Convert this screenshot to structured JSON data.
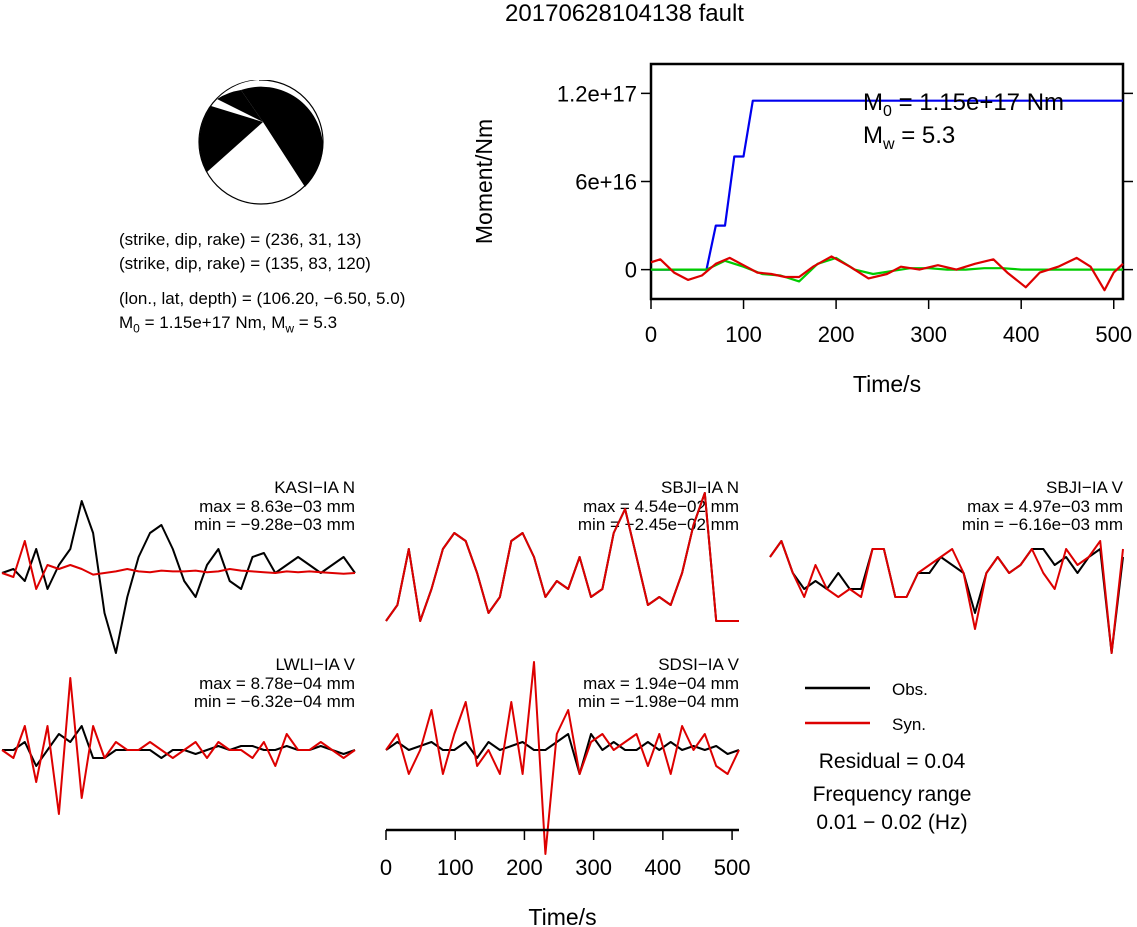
{
  "title": "20170628104138 fault",
  "beachball": {
    "nodal_plane_1": "(strike, dip, rake) = (236, 31, 13)",
    "nodal_plane_2": "(strike, dip, rake) = (135, 83, 120)",
    "location": "(lon., lat, depth) = (106.20, −6.50, 5.0)",
    "moment_line_prefix": "M",
    "moment_line_suffix": " = 1.15e+17 Nm, M",
    "moment_line_tail": " = 5.3",
    "subscript_0": "0",
    "subscript_w": "w"
  },
  "chart_data": [
    {
      "type": "line",
      "id": "moment-rate",
      "ylabel": "Moment/Nm",
      "xlabel": "Time/s",
      "xlim": [
        0,
        510
      ],
      "ylim": [
        -2e+16,
        1.4e+17
      ],
      "x_ticks": [
        0,
        100,
        200,
        300,
        400,
        500
      ],
      "y_ticks": [
        0,
        6e+16,
        1.2e+17
      ],
      "y_tick_labels": [
        "0",
        "6e+16",
        "1.2e+17"
      ],
      "annotation_m0": {
        "prefix": "M",
        "sub": "0",
        "rest": " = 1.15e+17 Nm"
      },
      "annotation_mw": {
        "prefix": "M",
        "sub": "w",
        "rest": " = 5.3"
      },
      "series": [
        {
          "color": "#0000ee",
          "x": [
            0,
            60,
            70,
            80,
            80,
            90,
            100,
            110,
            120,
            510
          ],
          "y": [
            0,
            0,
            3e+16,
            3e+16,
            3e+16,
            7.7e+16,
            7.7e+16,
            1.15e+17,
            1.15e+17,
            1.15e+17
          ]
        },
        {
          "color": "#00cc00",
          "x": [
            0,
            20,
            40,
            60,
            80,
            100,
            120,
            140,
            160,
            180,
            200,
            220,
            240,
            260,
            280,
            300,
            320,
            340,
            360,
            380,
            400,
            420,
            440,
            460,
            480,
            500,
            510
          ],
          "y": [
            0,
            0,
            0,
            0,
            6000000000000000.0,
            2000000000000000.0,
            -3000000000000000.0,
            -4000000000000000.0,
            -8000000000000000.0,
            4000000000000000.0,
            8000000000000000.0,
            0,
            -3000000000000000.0,
            -1000000000000000.0,
            1000000000000000.0,
            1000000000000000.0,
            0,
            0,
            1000000000000000.0,
            1000000000000000.0,
            0,
            0,
            0,
            0,
            0,
            0,
            0
          ]
        },
        {
          "color": "#dd0000",
          "x": [
            0,
            10,
            25,
            40,
            55,
            70,
            85,
            100,
            115,
            130,
            145,
            160,
            175,
            195,
            215,
            235,
            255,
            270,
            290,
            310,
            330,
            350,
            370,
            385,
            405,
            420,
            440,
            460,
            475,
            490,
            500,
            510
          ],
          "y": [
            5000000000000000.0,
            7000000000000000.0,
            -2000000000000000.0,
            -7000000000000000.0,
            -4000000000000000.0,
            4000000000000000.0,
            8000000000000000.0,
            3000000000000000.0,
            -2000000000000000.0,
            -3000000000000000.0,
            -5000000000000000.0,
            -5000000000000000.0,
            2000000000000000.0,
            9000000000000000.0,
            2000000000000000.0,
            -6000000000000000.0,
            -3000000000000000.0,
            2000000000000000.0,
            0,
            3000000000000000.0,
            0,
            4000000000000000.0,
            7000000000000000.0,
            -2000000000000000.0,
            -1.2e+16,
            -2000000000000000.0,
            2000000000000000.0,
            8000000000000000.0,
            2000000000000000.0,
            -1.4e+16,
            -2000000000000000.0,
            4000000000000000.0
          ]
        }
      ]
    },
    {
      "type": "line",
      "id": "waveform-grid",
      "xlabel": "Time/s",
      "xlim": [
        0,
        510
      ],
      "x_ticks": [
        0,
        100,
        200,
        300,
        400,
        500
      ],
      "legend": {
        "position": "bottom-right",
        "obs_label": "Obs.",
        "syn_label": "Syn.",
        "obs_color": "#000000",
        "syn_color": "#dd0000"
      },
      "residual": "Residual = 0.04",
      "frequency_title": "Frequency range",
      "frequency_value": "0.01 − 0.02 (Hz)",
      "stations": [
        {
          "station": "KASI−IA N",
          "max": "max = 8.63e−03 mm",
          "min": "min = −9.28e−03 mm",
          "obs": [
            0,
            0.05,
            -0.1,
            0.3,
            -0.2,
            0.1,
            0.3,
            0.9,
            0.5,
            -0.5,
            -1.0,
            -0.3,
            0.2,
            0.5,
            0.6,
            0.3,
            -0.1,
            -0.3,
            0.1,
            0.3,
            -0.1,
            -0.2,
            0.2,
            0.25,
            0.0,
            0.1,
            0.2,
            0.1,
            0.0,
            0.1,
            0.2,
            0.0
          ],
          "syn": [
            0,
            -0.05,
            0.4,
            -0.2,
            0.1,
            0.05,
            0.1,
            0.05,
            -0.02,
            0.0,
            0.02,
            0.05,
            0.02,
            0.01,
            0.03,
            0.02,
            0.02,
            0.03,
            0.01,
            0.02,
            0.05,
            0.03,
            0.02,
            0.01,
            0.0,
            0.02,
            0.01,
            0.02,
            0.01,
            0.0,
            -0.01,
            0.0
          ]
        },
        {
          "station": "SBJI−IA N",
          "max": "max = 4.54e−02 mm",
          "min": "min = −2.45e−02 mm",
          "obs": [
            -0.6,
            -0.4,
            0.3,
            -0.6,
            -0.2,
            0.3,
            0.5,
            0.4,
            0.0,
            -0.5,
            -0.3,
            0.4,
            0.5,
            0.2,
            -0.3,
            -0.1,
            -0.2,
            0.2,
            -0.3,
            -0.2,
            0.5,
            0.8,
            0.2,
            -0.4,
            -0.3,
            -0.4,
            0.0,
            0.6,
            1.0,
            -0.6,
            -0.6,
            -0.6
          ],
          "syn": [
            -0.6,
            -0.4,
            0.3,
            -0.6,
            -0.2,
            0.3,
            0.5,
            0.4,
            0.0,
            -0.5,
            -0.3,
            0.4,
            0.5,
            0.2,
            -0.3,
            -0.1,
            -0.2,
            0.2,
            -0.3,
            -0.2,
            0.5,
            0.8,
            0.2,
            -0.4,
            -0.3,
            -0.4,
            0.0,
            0.6,
            1.0,
            -0.6,
            -0.6,
            -0.6
          ]
        },
        {
          "station": "SBJI−IA V",
          "max": "max = 4.97e−03 mm",
          "min": "min = −6.16e−03 mm",
          "obs": [
            0.2,
            0.4,
            0.0,
            -0.2,
            -0.1,
            -0.2,
            0.0,
            -0.2,
            -0.2,
            0.3,
            0.3,
            -0.3,
            -0.3,
            0.0,
            0.0,
            0.2,
            0.1,
            0.0,
            -0.5,
            0.0,
            0.2,
            0.0,
            0.1,
            0.3,
            0.3,
            0.1,
            0.2,
            0.0,
            0.2,
            0.3,
            -1.0,
            0.2
          ],
          "syn": [
            0.2,
            0.4,
            0.0,
            -0.3,
            0.1,
            -0.2,
            -0.3,
            -0.2,
            -0.3,
            0.3,
            0.3,
            -0.3,
            -0.3,
            0.0,
            0.1,
            0.2,
            0.3,
            0.0,
            -0.7,
            0.0,
            0.2,
            0.0,
            0.1,
            0.3,
            0.0,
            -0.2,
            0.3,
            0.1,
            0.2,
            0.4,
            -1.0,
            0.3
          ]
        },
        {
          "station": "LWLI−IA V",
          "max": "max = 8.78e−04 mm",
          "min": "min = −6.32e−04 mm",
          "obs": [
            0.0,
            0.0,
            0.1,
            -0.2,
            0.0,
            0.2,
            0.1,
            0.3,
            -0.1,
            -0.1,
            0.0,
            0.0,
            0.0,
            0.0,
            -0.1,
            0.0,
            0.0,
            -0.05,
            0.0,
            0.05,
            0.0,
            0.05,
            0.05,
            0.0,
            0.0,
            0.05,
            0.0,
            0.0,
            0.05,
            0.0,
            -0.05,
            0.0
          ],
          "syn": [
            0.0,
            -0.1,
            0.3,
            -0.4,
            0.3,
            -0.8,
            0.9,
            -0.6,
            0.3,
            -0.1,
            0.1,
            0.0,
            0.0,
            0.1,
            0.0,
            -0.1,
            0.0,
            0.1,
            -0.1,
            0.1,
            0.0,
            0.0,
            -0.1,
            0.1,
            -0.2,
            0.2,
            0.0,
            0.0,
            0.1,
            0.0,
            -0.1,
            0.0
          ],
          "note_negative_spike": true
        },
        {
          "station": "SDSI−IA V",
          "max": "max = 1.94e−04 mm",
          "min": "min = −1.98e−04 mm",
          "obs": [
            0.0,
            0.1,
            0.0,
            0.05,
            0.1,
            0.0,
            0.0,
            0.1,
            -0.1,
            0.1,
            0.0,
            0.05,
            0.1,
            0.0,
            0.0,
            0.1,
            0.2,
            -0.3,
            0.2,
            0.0,
            0.1,
            0.0,
            0.0,
            0.1,
            0.0,
            0.1,
            0.0,
            0.05,
            0.0,
            0.05,
            -0.05,
            0.0
          ],
          "syn": [
            0.0,
            0.2,
            -0.3,
            0.0,
            0.5,
            -0.3,
            0.2,
            0.6,
            -0.2,
            0.0,
            -0.3,
            0.6,
            -0.3,
            1.1,
            -1.3,
            0.2,
            0.5,
            -0.3,
            0.1,
            0.2,
            0.0,
            0.1,
            0.2,
            -0.2,
            0.2,
            -0.3,
            0.3,
            0.0,
            0.2,
            -0.2,
            -0.3,
            0.0
          ]
        }
      ]
    }
  ]
}
